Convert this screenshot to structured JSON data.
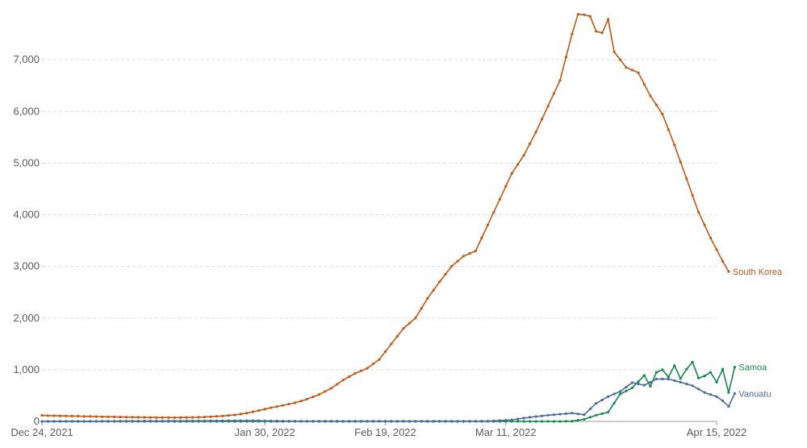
{
  "chart_data": {
    "type": "line",
    "x_start": "2021-12-24",
    "x_end": "2022-04-15",
    "x_ticks": [
      {
        "date": "2021-12-24",
        "label": "Dec 24, 2021"
      },
      {
        "date": "2022-01-30",
        "label": "Jan 30, 2022"
      },
      {
        "date": "2022-02-19",
        "label": "Feb 19, 2022"
      },
      {
        "date": "2022-03-11",
        "label": "Mar 11, 2022"
      },
      {
        "date": "2022-04-15",
        "label": "Apr 15, 2022"
      }
    ],
    "y_ticks": [
      {
        "value": 0,
        "label": "0"
      },
      {
        "value": 1000,
        "label": "1,000"
      },
      {
        "value": 2000,
        "label": "2,000"
      },
      {
        "value": 3000,
        "label": "3,000"
      },
      {
        "value": 4000,
        "label": "4,000"
      },
      {
        "value": 5000,
        "label": "5,000"
      },
      {
        "value": 6000,
        "label": "6,000"
      },
      {
        "value": 7000,
        "label": "7,000"
      }
    ],
    "ylim": [
      0,
      8000
    ],
    "grid": true,
    "series": [
      {
        "name": "South Korea",
        "color": "#c05917",
        "points": [
          [
            "2021-12-24",
            115
          ],
          [
            "2021-12-26",
            110
          ],
          [
            "2021-12-28",
            106
          ],
          [
            "2021-12-30",
            101
          ],
          [
            "2022-01-01",
            96
          ],
          [
            "2022-01-03",
            91
          ],
          [
            "2022-01-05",
            87
          ],
          [
            "2022-01-07",
            82
          ],
          [
            "2022-01-09",
            79
          ],
          [
            "2022-01-11",
            76
          ],
          [
            "2022-01-13",
            75
          ],
          [
            "2022-01-15",
            74
          ],
          [
            "2022-01-17",
            76
          ],
          [
            "2022-01-19",
            80
          ],
          [
            "2022-01-21",
            90
          ],
          [
            "2022-01-23",
            105
          ],
          [
            "2022-01-25",
            125
          ],
          [
            "2022-01-27",
            160
          ],
          [
            "2022-01-29",
            210
          ],
          [
            "2022-01-31",
            265
          ],
          [
            "2022-02-02",
            310
          ],
          [
            "2022-02-04",
            360
          ],
          [
            "2022-02-06",
            430
          ],
          [
            "2022-02-08",
            520
          ],
          [
            "2022-02-10",
            640
          ],
          [
            "2022-02-12",
            800
          ],
          [
            "2022-02-14",
            930
          ],
          [
            "2022-02-16",
            1030
          ],
          [
            "2022-02-18",
            1200
          ],
          [
            "2022-02-20",
            1500
          ],
          [
            "2022-02-22",
            1800
          ],
          [
            "2022-02-24",
            2000
          ],
          [
            "2022-02-26",
            2380
          ],
          [
            "2022-02-28",
            2700
          ],
          [
            "2022-03-02",
            3000
          ],
          [
            "2022-03-04",
            3200
          ],
          [
            "2022-03-06",
            3300
          ],
          [
            "2022-03-08",
            3800
          ],
          [
            "2022-03-10",
            4300
          ],
          [
            "2022-03-12",
            4800
          ],
          [
            "2022-03-14",
            5150
          ],
          [
            "2022-03-16",
            5600
          ],
          [
            "2022-03-18",
            6100
          ],
          [
            "2022-03-20",
            6600
          ],
          [
            "2022-03-22",
            7500
          ],
          [
            "2022-03-23",
            7880
          ],
          [
            "2022-03-24",
            7870
          ],
          [
            "2022-03-25",
            7840
          ],
          [
            "2022-03-26",
            7550
          ],
          [
            "2022-03-27",
            7520
          ],
          [
            "2022-03-28",
            7780
          ],
          [
            "2022-03-29",
            7150
          ],
          [
            "2022-03-31",
            6850
          ],
          [
            "2022-04-02",
            6750
          ],
          [
            "2022-04-04",
            6300
          ],
          [
            "2022-04-06",
            5950
          ],
          [
            "2022-04-08",
            5350
          ],
          [
            "2022-04-10",
            4700
          ],
          [
            "2022-04-12",
            4050
          ],
          [
            "2022-04-14",
            3550
          ],
          [
            "2022-04-16",
            3100
          ],
          [
            "2022-04-17",
            2900
          ]
        ]
      },
      {
        "name": "Samoa",
        "color": "#18874b",
        "points": [
          [
            "2021-12-24",
            0
          ],
          [
            "2022-03-20",
            0
          ],
          [
            "2022-03-22",
            5
          ],
          [
            "2022-03-24",
            40
          ],
          [
            "2022-03-26",
            120
          ],
          [
            "2022-03-28",
            180
          ],
          [
            "2022-03-30",
            530
          ],
          [
            "2022-04-01",
            650
          ],
          [
            "2022-04-03",
            890
          ],
          [
            "2022-04-04",
            680
          ],
          [
            "2022-04-05",
            950
          ],
          [
            "2022-04-06",
            1000
          ],
          [
            "2022-04-07",
            860
          ],
          [
            "2022-04-08",
            1080
          ],
          [
            "2022-04-09",
            830
          ],
          [
            "2022-04-10",
            1010
          ],
          [
            "2022-04-11",
            1150
          ],
          [
            "2022-04-12",
            840
          ],
          [
            "2022-04-13",
            880
          ],
          [
            "2022-04-14",
            950
          ],
          [
            "2022-04-15",
            760
          ],
          [
            "2022-04-16",
            1010
          ],
          [
            "2022-04-17",
            560
          ],
          [
            "2022-04-18",
            1050
          ]
        ]
      },
      {
        "name": "Vanuatu",
        "color": "#4c6a9c",
        "points": [
          [
            "2021-12-24",
            0
          ],
          [
            "2022-01-28",
            15
          ],
          [
            "2022-02-03",
            5
          ],
          [
            "2022-03-08",
            5
          ],
          [
            "2022-03-12",
            30
          ],
          [
            "2022-03-15",
            80
          ],
          [
            "2022-03-18",
            120
          ],
          [
            "2022-03-22",
            160
          ],
          [
            "2022-03-24",
            130
          ],
          [
            "2022-03-26",
            350
          ],
          [
            "2022-03-28",
            480
          ],
          [
            "2022-03-30",
            580
          ],
          [
            "2022-04-01",
            750
          ],
          [
            "2022-04-03",
            700
          ],
          [
            "2022-04-05",
            820
          ],
          [
            "2022-04-07",
            820
          ],
          [
            "2022-04-09",
            760
          ],
          [
            "2022-04-11",
            690
          ],
          [
            "2022-04-13",
            560
          ],
          [
            "2022-04-15",
            480
          ],
          [
            "2022-04-16",
            400
          ],
          [
            "2022-04-17",
            290
          ],
          [
            "2022-04-18",
            540
          ]
        ]
      }
    ]
  }
}
